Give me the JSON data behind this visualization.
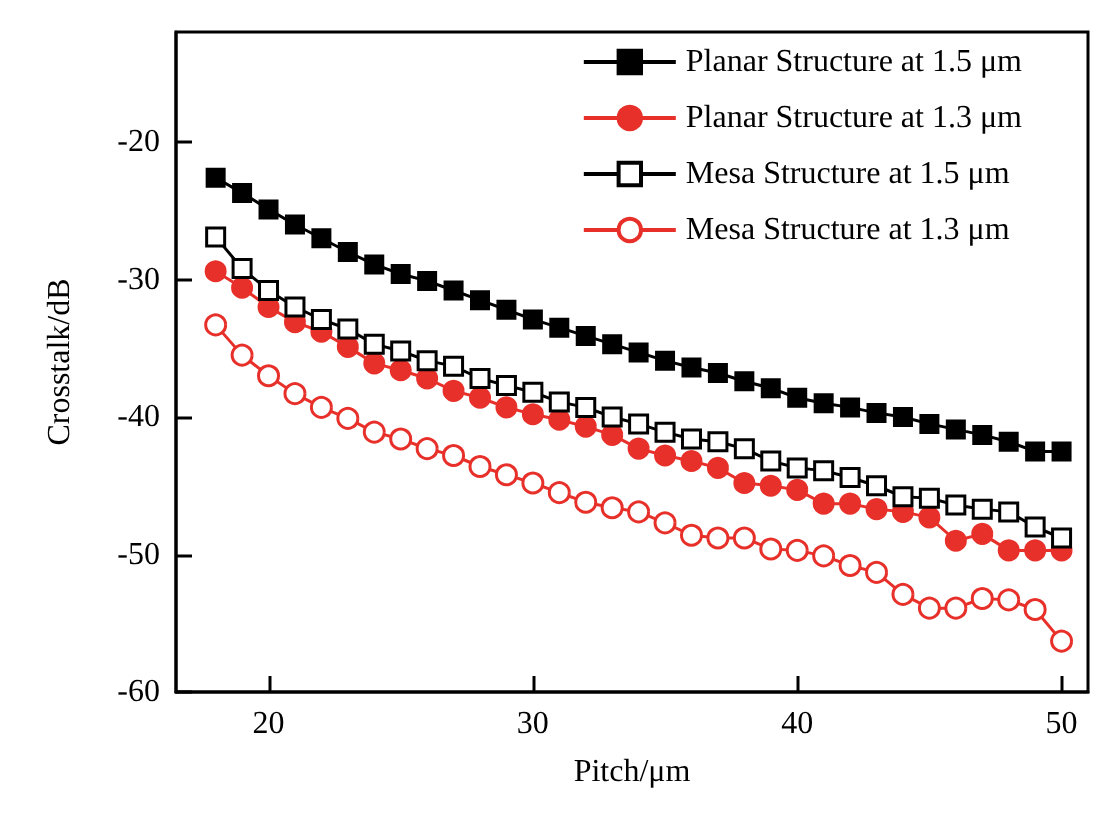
{
  "chart_data": {
    "type": "line",
    "xlabel": "Pitch/μm",
    "ylabel": "Crosstalk/dB",
    "x": [
      18,
      19,
      20,
      21,
      22,
      23,
      24,
      25,
      26,
      27,
      28,
      29,
      30,
      31,
      32,
      33,
      34,
      35,
      36,
      37,
      38,
      39,
      40,
      41,
      42,
      43,
      44,
      45,
      46,
      47,
      48,
      49,
      50
    ],
    "xlim": [
      16.5,
      51
    ],
    "xticks": [
      20,
      30,
      40,
      50
    ],
    "ylim": [
      -60,
      -12
    ],
    "yticks": [
      -60,
      -50,
      -40,
      -30,
      -20
    ],
    "grid": false,
    "legend": "top right",
    "series": [
      {
        "name": "Planar Structure at 1.5 μm",
        "color": "#000000",
        "marker": "square",
        "values": [
          -22.6,
          -23.7,
          -24.9,
          -26.0,
          -27.0,
          -28.0,
          -28.9,
          -29.6,
          -30.1,
          -30.8,
          -31.5,
          -32.2,
          -32.9,
          -33.5,
          -34.1,
          -34.7,
          -35.3,
          -35.9,
          -36.4,
          -36.8,
          -37.4,
          -37.9,
          -38.6,
          -39.0,
          -39.3,
          -39.7,
          -40.0,
          -40.5,
          -40.9,
          -41.3,
          -41.8,
          -42.5,
          -42.5
        ]
      },
      {
        "name": "Planar Structure at 1.3 μm",
        "color": "#e8302a",
        "marker": "circle",
        "values": [
          -29.4,
          -30.6,
          -32.0,
          -33.1,
          -33.8,
          -34.9,
          -36.1,
          -36.6,
          -37.2,
          -38.1,
          -38.6,
          -39.3,
          -39.8,
          -40.2,
          -40.7,
          -41.3,
          -42.3,
          -42.8,
          -43.2,
          -43.7,
          -44.8,
          -45.0,
          -45.3,
          -46.3,
          -46.3,
          -46.7,
          -46.9,
          -47.3,
          -49.0,
          -48.5,
          -49.7,
          -49.7,
          -49.7
        ]
      },
      {
        "name": "Mesa Structure at 1.5 μm",
        "color": "#000000",
        "marker": "square",
        "values": [
          -26.9,
          -29.2,
          -30.8,
          -32.0,
          -32.9,
          -33.6,
          -34.7,
          -35.2,
          -35.9,
          -36.3,
          -37.2,
          -37.7,
          -38.2,
          -38.9,
          -39.3,
          -40.0,
          -40.5,
          -41.1,
          -41.6,
          -41.8,
          -42.3,
          -43.2,
          -43.7,
          -43.9,
          -44.4,
          -45.0,
          -45.8,
          -45.9,
          -46.4,
          -46.7,
          -46.9,
          -48.0,
          -48.8
        ]
      },
      {
        "name": "Mesa Structure at 1.3 μm",
        "color": "#e8302a",
        "marker": "circle",
        "values": [
          -33.3,
          -35.5,
          -37.0,
          -38.3,
          -39.3,
          -40.1,
          -41.1,
          -41.6,
          -42.3,
          -42.8,
          -43.6,
          -44.2,
          -44.8,
          -45.5,
          -46.2,
          -46.6,
          -46.9,
          -47.7,
          -48.6,
          -48.8,
          -48.8,
          -49.6,
          -49.7,
          -50.1,
          -50.8,
          -51.3,
          -52.9,
          -53.9,
          -53.9,
          -53.2,
          -53.3,
          -54.0,
          -56.3
        ]
      }
    ]
  }
}
